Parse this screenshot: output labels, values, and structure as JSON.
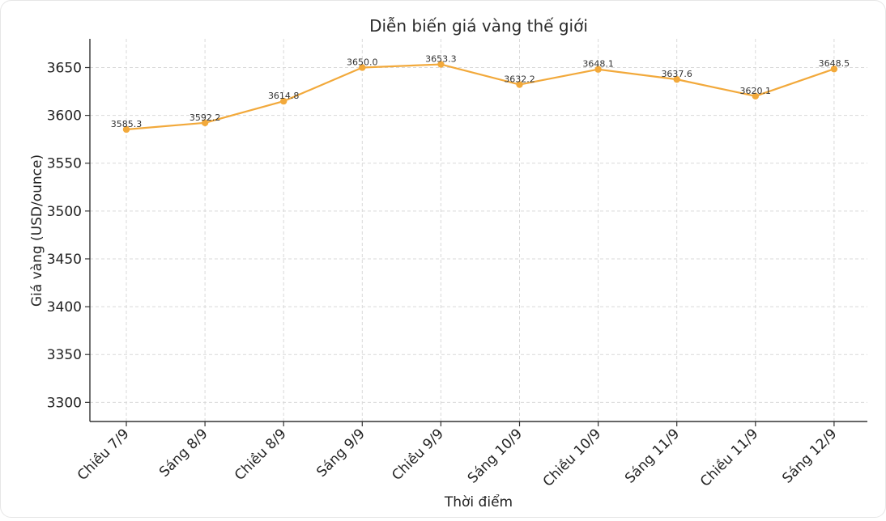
{
  "chart_data": {
    "type": "line",
    "title": "Diễn biến giá vàng thế giới",
    "xlabel": "Thời điểm",
    "ylabel": "Giá vàng (USD/ounce)",
    "categories": [
      "Chiều 7/9",
      "Sáng 8/9",
      "Chiều 8/9",
      "Sáng 9/9",
      "Chiều 9/9",
      "Sáng 10/9",
      "Chiều 10/9",
      "Sáng 11/9",
      "Chiều 11/9",
      "Sáng 12/9"
    ],
    "series": [
      {
        "values": [
          3585.3,
          3592.2,
          3614.8,
          3650.0,
          3653.3,
          3632.2,
          3648.1,
          3637.6,
          3620.1,
          3648.5
        ],
        "color": "#F2A93B"
      }
    ],
    "data_labels": [
      "3585.3",
      "3592.2",
      "3614.8",
      "3650.0",
      "3653.3",
      "3632.2",
      "3648.1",
      "3637.6",
      "3620.1",
      "3648.5"
    ],
    "yticks": [
      3300,
      3350,
      3400,
      3450,
      3500,
      3550,
      3600,
      3650
    ],
    "ylim": [
      3280,
      3680
    ],
    "grid": true,
    "legend": false
  }
}
